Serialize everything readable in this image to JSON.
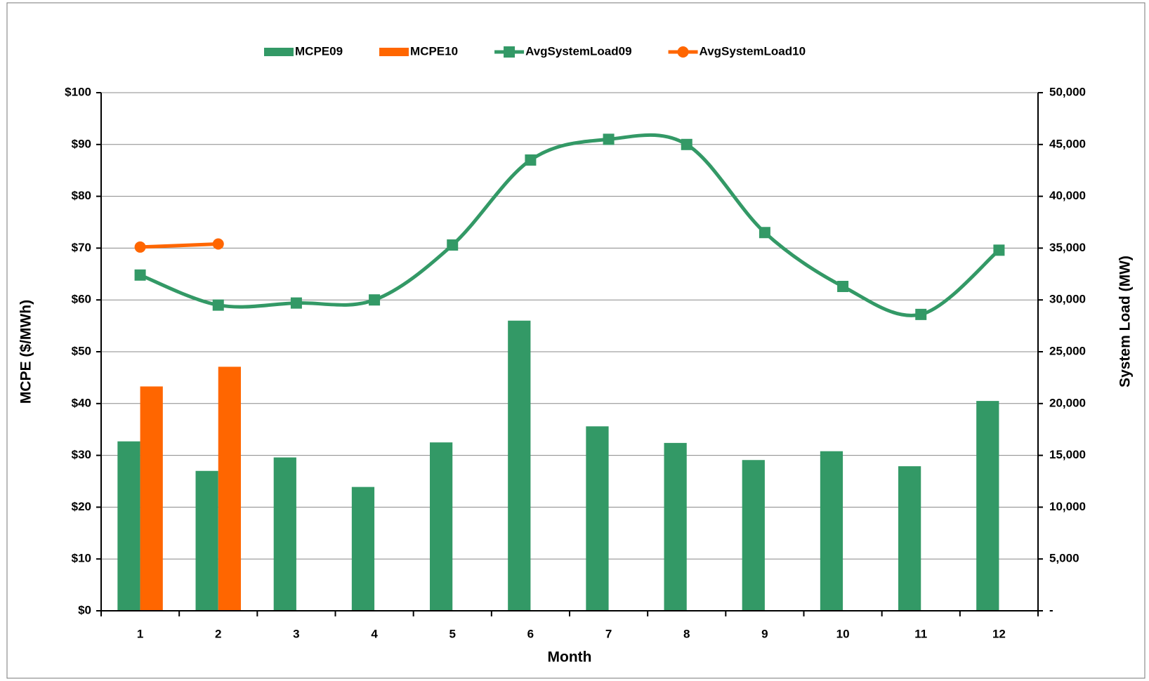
{
  "chart_data": {
    "type": "bar",
    "x_label": "Month",
    "y_label": "MCPE ($/MWh)",
    "y2_label": "System Load (MW)",
    "categories": [
      "1",
      "2",
      "3",
      "4",
      "5",
      "6",
      "7",
      "8",
      "9",
      "10",
      "11",
      "12"
    ],
    "series": [
      {
        "name": "MCPE09",
        "type": "bar",
        "color": "#339966",
        "values": [
          32.7,
          27.0,
          29.6,
          23.9,
          32.5,
          56.0,
          35.6,
          32.4,
          29.1,
          30.8,
          27.9,
          40.5
        ]
      },
      {
        "name": "MCPE10",
        "type": "bar",
        "color": "#ff6600",
        "values": [
          43.3,
          47.1,
          null,
          null,
          null,
          null,
          null,
          null,
          null,
          null,
          null,
          null
        ]
      },
      {
        "name": "AvgSystemLoad09",
        "type": "line",
        "marker": "square",
        "axis": "y2",
        "color": "#339966",
        "values": [
          32400,
          29500,
          29700,
          30000,
          35300,
          43500,
          45500,
          45000,
          36500,
          31300,
          28600,
          34800
        ]
      },
      {
        "name": "AvgSystemLoad10",
        "type": "line",
        "marker": "circle",
        "axis": "y2",
        "color": "#ff6600",
        "values": [
          35100,
          35400,
          null,
          null,
          null,
          null,
          null,
          null,
          null,
          null,
          null,
          null
        ]
      }
    ],
    "ylim": [
      0,
      100
    ],
    "yticks": [
      {
        "value": 0,
        "label": "$0"
      },
      {
        "value": 10,
        "label": "$10"
      },
      {
        "value": 20,
        "label": "$20"
      },
      {
        "value": 30,
        "label": "$30"
      },
      {
        "value": 40,
        "label": "$40"
      },
      {
        "value": 50,
        "label": "$50"
      },
      {
        "value": 60,
        "label": "$60"
      },
      {
        "value": 70,
        "label": "$70"
      },
      {
        "value": 80,
        "label": "$80"
      },
      {
        "value": 90,
        "label": "$90"
      },
      {
        "value": 100,
        "label": "$100"
      }
    ],
    "y2lim": [
      0,
      50000
    ],
    "y2ticks": [
      {
        "value": 0,
        "label": "-"
      },
      {
        "value": 5000,
        "label": "5,000"
      },
      {
        "value": 10000,
        "label": "10,000"
      },
      {
        "value": 15000,
        "label": "15,000"
      },
      {
        "value": 20000,
        "label": "20,000"
      },
      {
        "value": 25000,
        "label": "25,000"
      },
      {
        "value": 30000,
        "label": "30,000"
      },
      {
        "value": 35000,
        "label": "35,000"
      },
      {
        "value": 40000,
        "label": "40,000"
      },
      {
        "value": 45000,
        "label": "45,000"
      },
      {
        "value": 50000,
        "label": "50,000"
      }
    ],
    "grid": true,
    "legend": "top"
  }
}
